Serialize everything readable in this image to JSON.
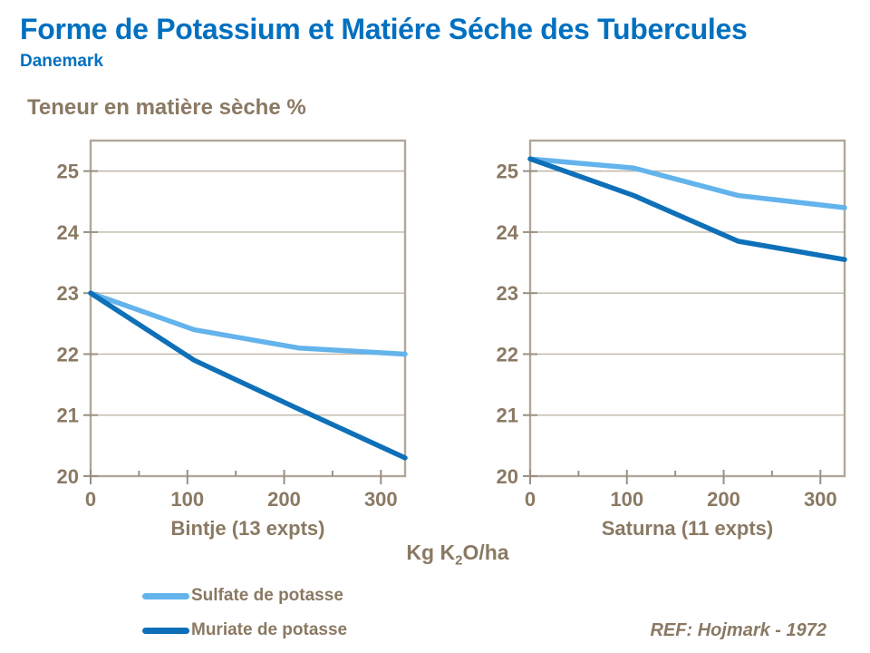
{
  "slide": {
    "title": "Forme de Potassium et Matiére Séche des Tubercules",
    "subtitle": "Danemark",
    "y_axis_title": "Teneur en matière sèche %",
    "reference": "REF: Hojmark - 1972"
  },
  "x_axis_title": {
    "pre": "Kg K",
    "sub": "2",
    "post": "O/ha"
  },
  "colors": {
    "title_blue": "#0070C0",
    "text_brown": "#8A7963",
    "axis_border": "#B0A79A",
    "gridline": "#BFB6A8",
    "tick": "#9A9082",
    "sulfate_blue": "#63B3EC",
    "muriate_blue": "#0E70B8"
  },
  "legend": {
    "items": [
      {
        "label": "Sulfate de potasse",
        "color_key": "sulfate_blue"
      },
      {
        "label": "Muriate de potasse",
        "color_key": "muriate_blue"
      }
    ]
  },
  "chart_data": [
    {
      "type": "line",
      "title": "Bintje (13 expts)",
      "xlabel": "Kg K2O/ha",
      "ylabel": "Teneur en matière sèche %",
      "x": [
        0,
        107,
        215,
        325
      ],
      "series": [
        {
          "name": "Sulfate de potasse",
          "color_key": "sulfate_blue",
          "values": [
            23.0,
            22.4,
            22.1,
            22.0
          ]
        },
        {
          "name": "Muriate de potasse",
          "color_key": "muriate_blue",
          "values": [
            23.0,
            21.9,
            21.1,
            20.3
          ]
        }
      ],
      "xlim": [
        0,
        325
      ],
      "ylim": [
        20,
        25.5
      ],
      "x_major_ticks": [
        0,
        100,
        200,
        300
      ],
      "x_minor_ticks": [
        50,
        150,
        250
      ],
      "y_ticks": [
        20,
        21,
        22,
        23,
        24,
        25
      ],
      "grid": "horizontal",
      "legend_position": "below-left"
    },
    {
      "type": "line",
      "title": "Saturna (11 expts)",
      "xlabel": "Kg K2O/ha",
      "ylabel": "Teneur en matière sèche %",
      "x": [
        0,
        107,
        215,
        325
      ],
      "series": [
        {
          "name": "Sulfate de potasse",
          "color_key": "sulfate_blue",
          "values": [
            25.2,
            25.05,
            24.6,
            24.4
          ]
        },
        {
          "name": "Muriate de potasse",
          "color_key": "muriate_blue",
          "values": [
            25.2,
            24.6,
            23.85,
            23.55
          ]
        }
      ],
      "xlim": [
        0,
        325
      ],
      "ylim": [
        20,
        25.5
      ],
      "x_major_ticks": [
        0,
        100,
        200,
        300
      ],
      "x_minor_ticks": [
        50,
        150,
        250
      ],
      "y_ticks": [
        20,
        21,
        22,
        23,
        24,
        25
      ],
      "grid": "horizontal",
      "legend_position": "below-left"
    }
  ]
}
